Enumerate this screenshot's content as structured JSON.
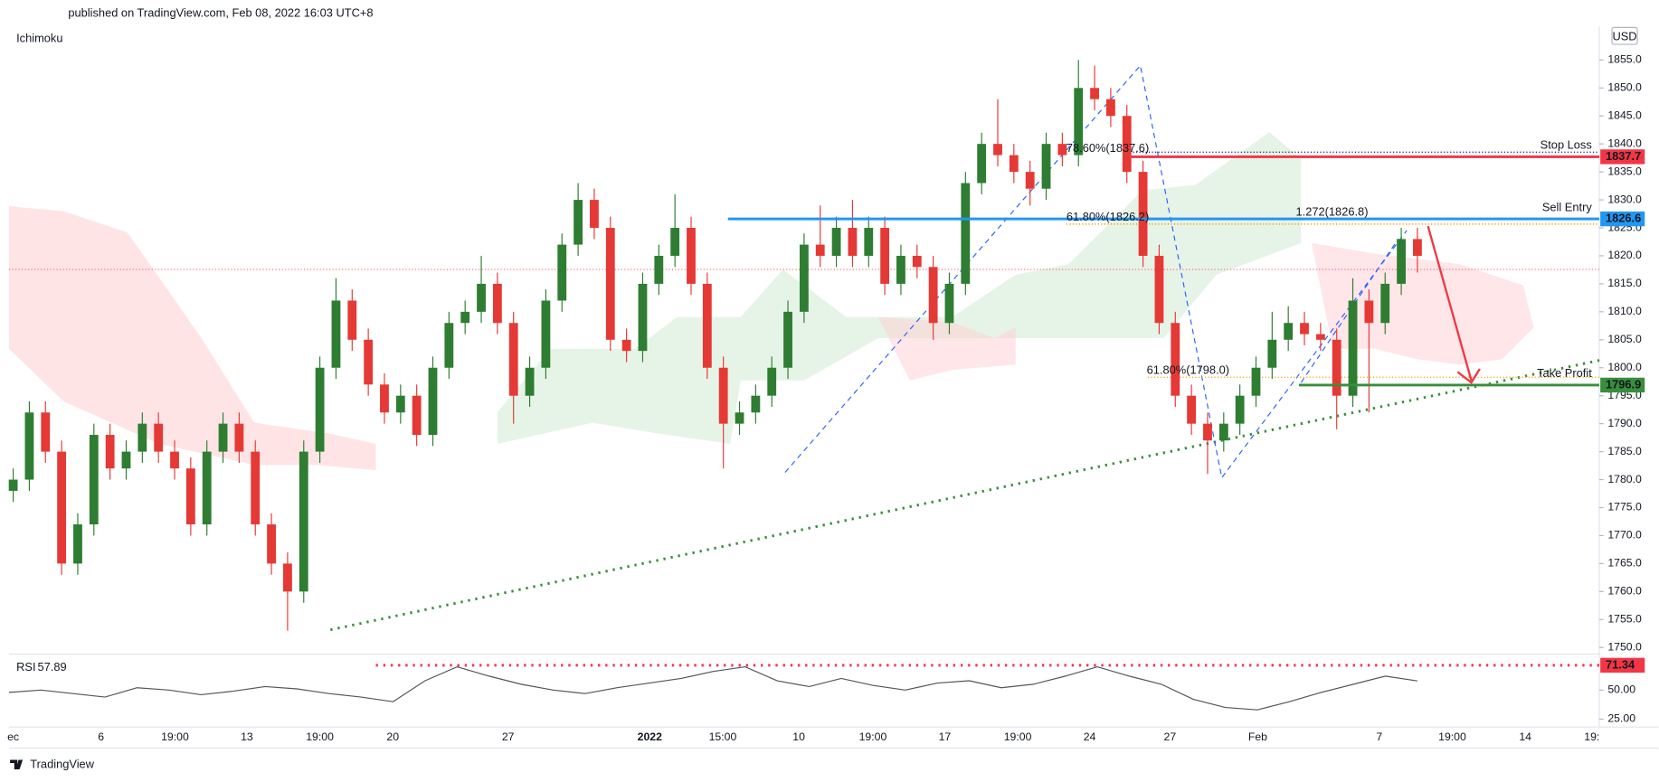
{
  "chart_data": {
    "type": "candlestick",
    "header": "published on TradingView.com, Feb 08, 2022 16:03 UTC+8",
    "indicator": "Ichimoku",
    "currency": "USD",
    "footer": "TradingView",
    "up_color": "#2e7d32",
    "down_color": "#e53935",
    "ylim": [
      1749,
      1861
    ],
    "yticks": [
      {
        "value": 1750,
        "label": "1750.0"
      },
      {
        "value": 1755,
        "label": "1755.0"
      },
      {
        "value": 1760,
        "label": "1760.0"
      },
      {
        "value": 1765,
        "label": "1765.0"
      },
      {
        "value": 1770,
        "label": "1770.0"
      },
      {
        "value": 1775,
        "label": "1775.0"
      },
      {
        "value": 1780,
        "label": "1780.0"
      },
      {
        "value": 1785,
        "label": "1785.0"
      },
      {
        "value": 1790,
        "label": "1790.0"
      },
      {
        "value": 1795,
        "label": "1795.0"
      },
      {
        "value": 1800,
        "label": "1800.0"
      },
      {
        "value": 1805,
        "label": "1805.0"
      },
      {
        "value": 1810,
        "label": "1810.0"
      },
      {
        "value": 1815,
        "label": "1815.0"
      },
      {
        "value": 1820,
        "label": "1820.0"
      },
      {
        "value": 1825,
        "label": "1825.0"
      },
      {
        "value": 1830,
        "label": "1830.0"
      },
      {
        "value": 1835,
        "label": "1835.0"
      },
      {
        "value": 1840,
        "label": "1840.0"
      },
      {
        "value": 1845,
        "label": "1845.0"
      },
      {
        "value": 1850,
        "label": "1850.0"
      },
      {
        "value": 1855,
        "label": "1855.0"
      }
    ],
    "x_labels": [
      "ec",
      "6",
      "19:00",
      "13",
      "19:00",
      "20",
      "27",
      "2022",
      "15:00",
      "10",
      "19:00",
      "17",
      "19:00",
      "24",
      "27",
      "Feb",
      "7",
      "19:00",
      "14",
      "19:"
    ],
    "open": [
      1778,
      1780,
      1792,
      1785,
      1765,
      1772,
      1788,
      1782,
      1785,
      1790,
      1785,
      1782,
      1772,
      1785,
      1790,
      1785,
      1772,
      1765,
      1760,
      1785,
      1800,
      1812,
      1805,
      1797,
      1792,
      1795,
      1788,
      1800,
      1808,
      1810,
      1815,
      1808,
      1795,
      1800,
      1812,
      1822,
      1830,
      1825,
      1805,
      1803,
      1815,
      1820,
      1825,
      1815,
      1800,
      1790,
      1792,
      1795,
      1800,
      1810,
      1822,
      1820,
      1825,
      1820,
      1825,
      1815,
      1820,
      1818,
      1808,
      1815,
      1833,
      1840,
      1838,
      1835,
      1832,
      1840,
      1838,
      1850,
      1848,
      1845,
      1835,
      1820,
      1808,
      1795,
      1790,
      1787,
      1790,
      1795,
      1800,
      1805,
      1808,
      1806,
      1805,
      1795,
      1812,
      1808,
      1815,
      1823
    ],
    "high": [
      1782,
      1794,
      1794,
      1787,
      1774,
      1790,
      1790,
      1787,
      1792,
      1792,
      1787,
      1784,
      1787,
      1792,
      1792,
      1787,
      1774,
      1767,
      1787,
      1802,
      1816,
      1814,
      1807,
      1799,
      1797,
      1797,
      1802,
      1810,
      1812,
      1820,
      1817,
      1810,
      1802,
      1814,
      1824,
      1833,
      1832,
      1827,
      1807,
      1817,
      1822,
      1831,
      1827,
      1817,
      1802,
      1794,
      1797,
      1802,
      1812,
      1824,
      1829,
      1827,
      1830,
      1827,
      1827,
      1822,
      1822,
      1820,
      1817,
      1835,
      1842,
      1848,
      1840,
      1837,
      1842,
      1842,
      1855,
      1854,
      1850,
      1847,
      1837,
      1822,
      1810,
      1797,
      1792,
      1792,
      1797,
      1802,
      1810,
      1811,
      1810,
      1808,
      1807,
      1816,
      1814,
      1817,
      1825,
      1825
    ],
    "low": [
      1776,
      1778,
      1783,
      1763,
      1763,
      1770,
      1780,
      1780,
      1783,
      1783,
      1780,
      1770,
      1770,
      1783,
      1783,
      1770,
      1763,
      1753,
      1758,
      1783,
      1798,
      1803,
      1795,
      1790,
      1790,
      1786,
      1786,
      1798,
      1806,
      1808,
      1806,
      1790,
      1793,
      1798,
      1810,
      1820,
      1823,
      1803,
      1801,
      1801,
      1813,
      1818,
      1813,
      1798,
      1782,
      1788,
      1790,
      1793,
      1798,
      1808,
      1818,
      1818,
      1818,
      1818,
      1813,
      1813,
      1816,
      1805,
      1806,
      1813,
      1831,
      1836,
      1833,
      1829,
      1830,
      1836,
      1836,
      1846,
      1843,
      1833,
      1818,
      1806,
      1793,
      1788,
      1781,
      1785,
      1788,
      1793,
      1798,
      1803,
      1804,
      1803,
      1789,
      1793,
      1792,
      1806,
      1813,
      1817
    ],
    "close": [
      1780,
      1792,
      1785,
      1765,
      1772,
      1788,
      1782,
      1785,
      1790,
      1785,
      1782,
      1772,
      1785,
      1790,
      1785,
      1772,
      1765,
      1760,
      1785,
      1800,
      1812,
      1805,
      1797,
      1792,
      1795,
      1788,
      1800,
      1808,
      1810,
      1815,
      1808,
      1795,
      1800,
      1812,
      1822,
      1830,
      1825,
      1805,
      1803,
      1815,
      1820,
      1825,
      1815,
      1800,
      1790,
      1792,
      1795,
      1800,
      1810,
      1822,
      1820,
      1825,
      1820,
      1825,
      1815,
      1820,
      1818,
      1808,
      1815,
      1833,
      1840,
      1838,
      1835,
      1832,
      1840,
      1838,
      1850,
      1848,
      1845,
      1835,
      1820,
      1808,
      1795,
      1790,
      1787,
      1790,
      1795,
      1800,
      1805,
      1808,
      1806,
      1805,
      1795,
      1812,
      1808,
      1815,
      1823,
      1820
    ],
    "levels": [
      {
        "name": "Stop Loss",
        "value": 1837.7,
        "color": "#f23645"
      },
      {
        "name": "Sell Entry",
        "value": 1826.6,
        "color": "#2196f3"
      },
      {
        "name": "Take Profit",
        "value": 1796.9,
        "color": "#388e3c"
      }
    ],
    "annotations": [
      {
        "text": "78.60%(1837.6)",
        "color": "#2962ff"
      },
      {
        "text": "61.80%(1826.2)",
        "color": "#f5a623"
      },
      {
        "text": "1.272(1826.8)",
        "color": "#2962ff"
      },
      {
        "text": "61.80%(1798.0)",
        "color": "#f5a623"
      }
    ],
    "rsi": {
      "name": "RSI",
      "current": 57.89,
      "ylim": [
        20,
        80
      ],
      "yticks": [
        {
          "value": 25,
          "label": "25.00"
        },
        {
          "value": 50,
          "label": "50.00"
        }
      ],
      "level": 71.34,
      "values": [
        48,
        50,
        47,
        44,
        52,
        50,
        46,
        49,
        53,
        51,
        47,
        44,
        40,
        58,
        70,
        62,
        55,
        50,
        47,
        52,
        56,
        60,
        66,
        70,
        58,
        53,
        60,
        54,
        50,
        56,
        58,
        52,
        55,
        62,
        70,
        62,
        55,
        42,
        35,
        33,
        40,
        48,
        55,
        62,
        57.89
      ]
    }
  }
}
